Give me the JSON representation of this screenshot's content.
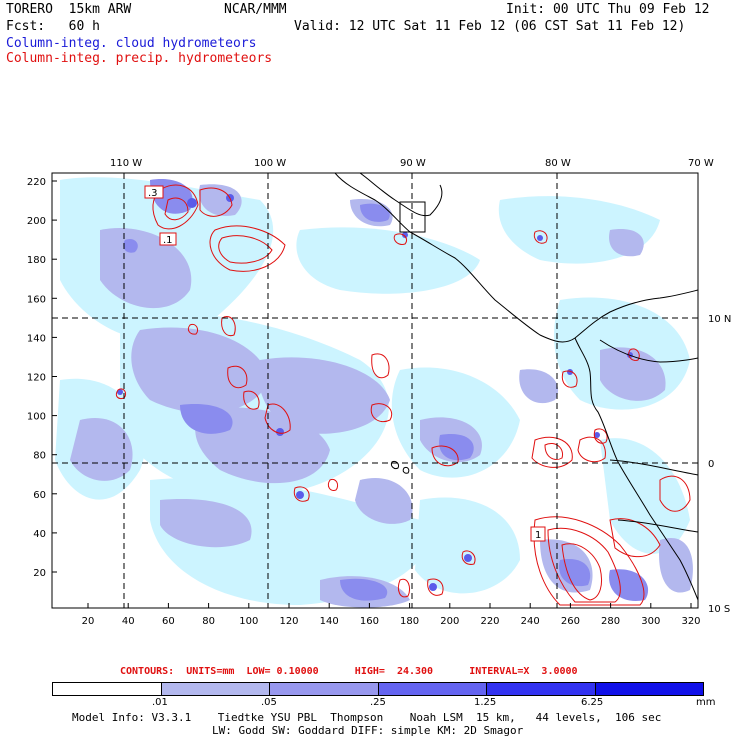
{
  "header": {
    "model_id": "TORERO  15km ARW",
    "org": "NCAR/MMM",
    "init": "Init: 00 UTC Thu 09 Feb 12",
    "fcst": "Fcst:   60 h",
    "valid": "Valid: 12 UTC Sat 11 Feb 12 (06 CST Sat 11 Feb 12)",
    "field_cloud": "Column-integ. cloud hydrometeors",
    "field_precip": "Column-integ. precip. hydrometeors"
  },
  "map": {
    "lon_labels": [
      "110 W",
      "100 W",
      "90 W",
      "80 W",
      "70 W"
    ],
    "lat_labels": [
      "10 N",
      "0",
      "10 S"
    ],
    "y_ticks": [
      "220",
      "200",
      "180",
      "160",
      "140",
      "120",
      "100",
      "80",
      "60",
      "40",
      "20"
    ],
    "x_ticks": [
      "20",
      "40",
      "60",
      "80",
      "100",
      "120",
      "140",
      "160",
      "180",
      "200",
      "220",
      "240",
      "260",
      "280",
      "300",
      "320"
    ],
    "box_labels": [
      ".3",
      ".1",
      "1"
    ]
  },
  "contours": {
    "text": "CONTOURS:  UNITS=mm  LOW= 0.10000      HIGH=  24.300      INTERVAL=X  3.0000"
  },
  "colorbar": {
    "labels": [
      ".01",
      ".05",
      ".25",
      "1.25",
      "6.25",
      "mm"
    ],
    "colors": [
      "#ffffff",
      "#ccf4ff",
      "#b3b8ee",
      "#9898ee",
      "#6464f0",
      "#3232f0",
      "#1010e8"
    ]
  },
  "footer": {
    "line1": "Model Info: V3.3.1    Tiedtke YSU PBL  Thompson    Noah LSM  15 km,   44 levels,  106 sec",
    "line2": "LW: Godd SW: Goddard DIFF: simple KM: 2D Smagor"
  }
}
